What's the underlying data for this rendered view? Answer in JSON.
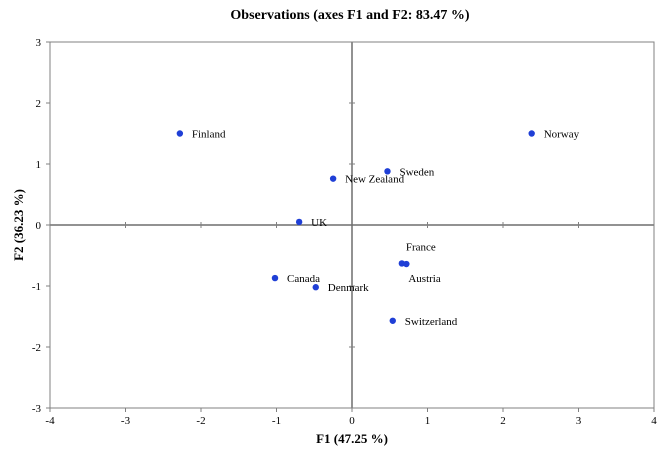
{
  "chart_data": {
    "type": "scatter",
    "title": "Observations (axes F1 and F2: 83.47 %)",
    "xlabel": "F1 (47.25 %)",
    "ylabel": "F2 (36.23 %)",
    "xlim": [
      -4,
      4
    ],
    "ylim": [
      -3,
      3
    ],
    "xticks": [
      -4,
      -3,
      -2,
      -1,
      0,
      1,
      2,
      3,
      4
    ],
    "yticks": [
      -3,
      -2,
      -1,
      0,
      1,
      2,
      3
    ],
    "grid": false,
    "legend": "none",
    "point_color": "#1f3fd6",
    "points": [
      {
        "label": "Finland",
        "x": -2.28,
        "y": 1.5,
        "anchor": "right"
      },
      {
        "label": "Norway",
        "x": 2.38,
        "y": 1.5,
        "anchor": "right"
      },
      {
        "label": "Sweden",
        "x": 0.47,
        "y": 0.88,
        "anchor": "right"
      },
      {
        "label": "New Zealand",
        "x": -0.25,
        "y": 0.76,
        "anchor": "right"
      },
      {
        "label": "UK",
        "x": -0.7,
        "y": 0.05,
        "anchor": "right"
      },
      {
        "label": "France",
        "x": 0.66,
        "y": -0.63,
        "anchor": "above"
      },
      {
        "label": "Austria",
        "x": 0.72,
        "y": -0.64,
        "anchor": "below"
      },
      {
        "label": "Canada",
        "x": -1.02,
        "y": -0.87,
        "anchor": "right"
      },
      {
        "label": "Denmark",
        "x": -0.48,
        "y": -1.02,
        "anchor": "right"
      },
      {
        "label": "Switzerland",
        "x": 0.54,
        "y": -1.57,
        "anchor": "right"
      }
    ]
  }
}
